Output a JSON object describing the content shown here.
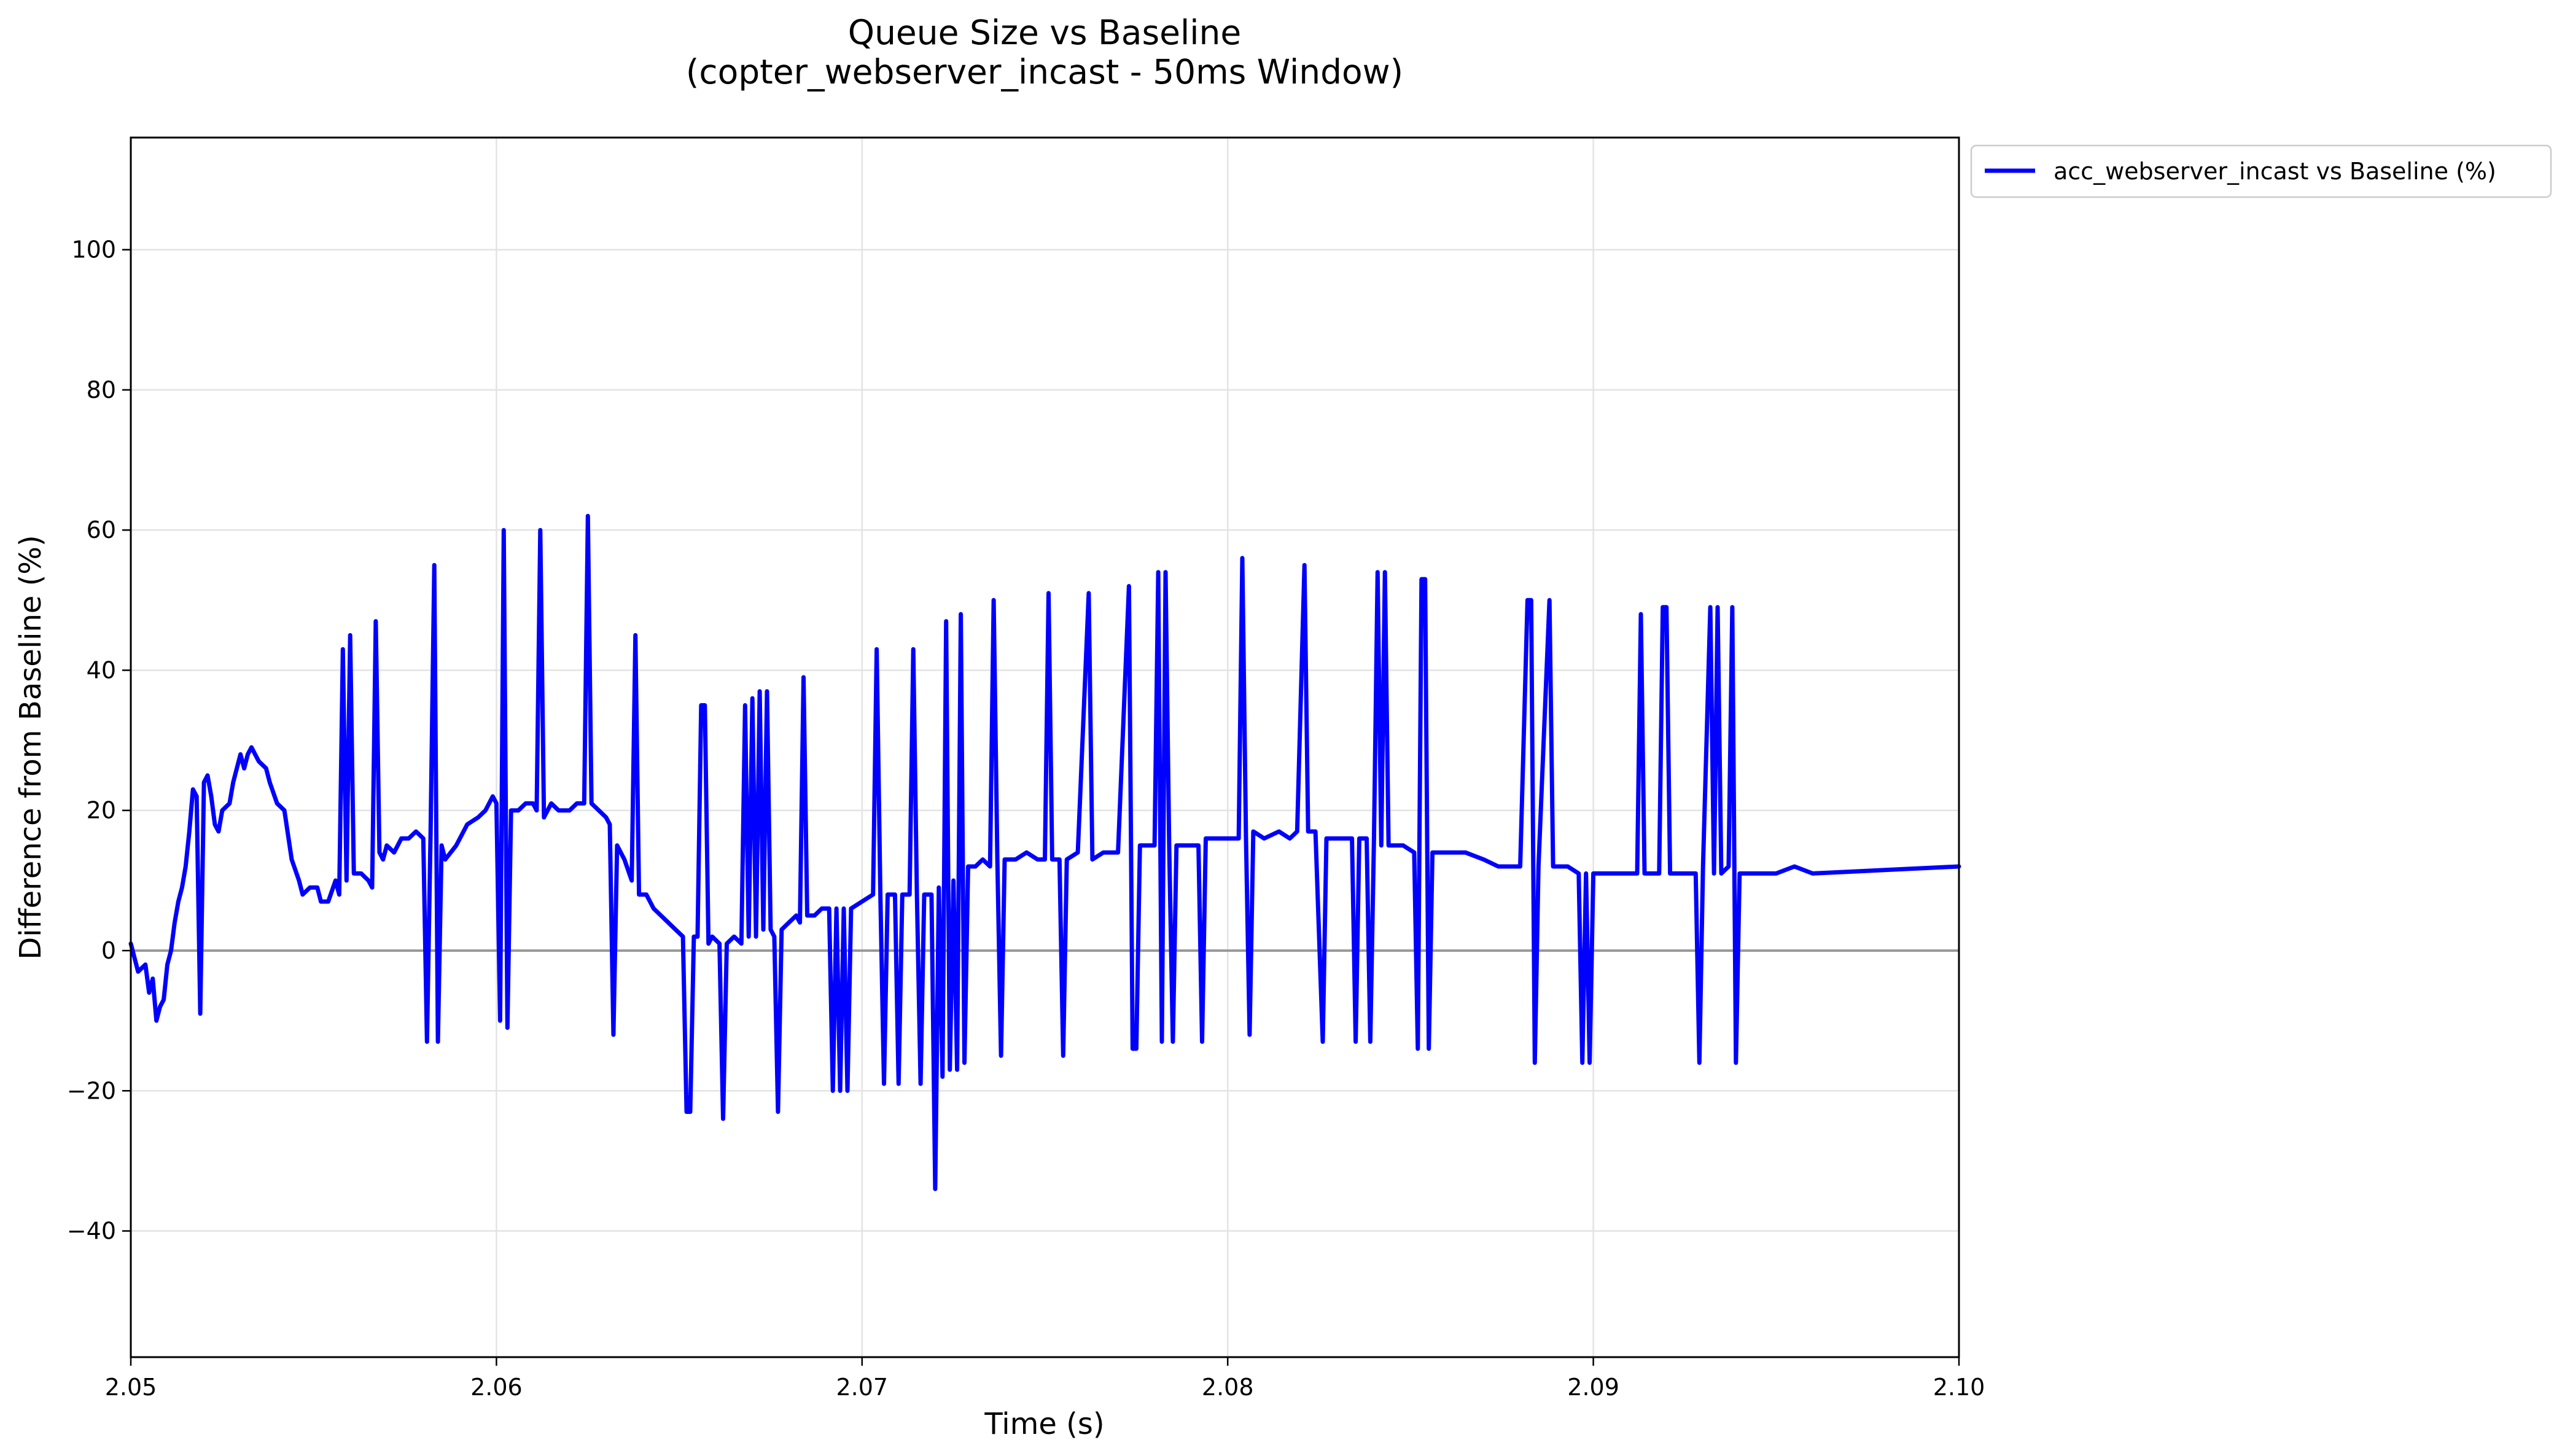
{
  "chart_data": {
    "type": "line",
    "title": "Queue Size vs Baseline",
    "subtitle": "(copter_webserver_incast - 50ms Window)",
    "xlabel": "Time (s)",
    "ylabel": "Difference from Baseline (%)",
    "xlim": [
      2.05,
      2.1
    ],
    "ylim": [
      -58,
      116
    ],
    "x_ticks": [
      2.05,
      2.06,
      2.07,
      2.08,
      2.09,
      2.1
    ],
    "x_tick_labels": [
      "2.05",
      "2.06",
      "2.07",
      "2.08",
      "2.09",
      "2.10"
    ],
    "y_ticks": [
      -40,
      -20,
      0,
      20,
      40,
      60,
      80,
      100
    ],
    "y_tick_labels": [
      "−40",
      "−20",
      "0",
      "20",
      "40",
      "60",
      "80",
      "100"
    ],
    "grid": true,
    "legend_position": "outside top-right",
    "reference_line": {
      "y": 0,
      "color": "#999999"
    },
    "series": [
      {
        "name": "acc_webserver_incast vs Baseline (%)",
        "color": "#0000ff",
        "points": [
          [
            2.05,
            1
          ],
          [
            2.0502,
            -3
          ],
          [
            2.0504,
            -2
          ],
          [
            2.0505,
            -6
          ],
          [
            2.0506,
            -4
          ],
          [
            2.0507,
            -10
          ],
          [
            2.0508,
            -8
          ],
          [
            2.0509,
            -7
          ],
          [
            2.051,
            -2
          ],
          [
            2.0511,
            0
          ],
          [
            2.0512,
            4
          ],
          [
            2.0513,
            7
          ],
          [
            2.0514,
            9
          ],
          [
            2.0515,
            12
          ],
          [
            2.0516,
            17
          ],
          [
            2.0517,
            23
          ],
          [
            2.0518,
            22
          ],
          [
            2.0519,
            -9
          ],
          [
            2.052,
            24
          ],
          [
            2.0521,
            25
          ],
          [
            2.0522,
            22
          ],
          [
            2.0523,
            18
          ],
          [
            2.0524,
            17
          ],
          [
            2.0525,
            20
          ],
          [
            2.0527,
            21
          ],
          [
            2.0528,
            24
          ],
          [
            2.053,
            28
          ],
          [
            2.0531,
            26
          ],
          [
            2.0532,
            28
          ],
          [
            2.0533,
            29
          ],
          [
            2.0535,
            27
          ],
          [
            2.0537,
            26
          ],
          [
            2.0538,
            24
          ],
          [
            2.054,
            21
          ],
          [
            2.0542,
            20
          ],
          [
            2.0544,
            13
          ],
          [
            2.0546,
            10
          ],
          [
            2.0547,
            8
          ],
          [
            2.0549,
            9
          ],
          [
            2.0551,
            9
          ],
          [
            2.0552,
            7
          ],
          [
            2.0554,
            7
          ],
          [
            2.0556,
            10
          ],
          [
            2.0557,
            8
          ],
          [
            2.0558,
            43
          ],
          [
            2.0559,
            10
          ],
          [
            2.056,
            45
          ],
          [
            2.0561,
            11
          ],
          [
            2.0563,
            11
          ],
          [
            2.0565,
            10
          ],
          [
            2.0566,
            9
          ],
          [
            2.0567,
            47
          ],
          [
            2.0568,
            14
          ],
          [
            2.0569,
            13
          ],
          [
            2.057,
            15
          ],
          [
            2.0572,
            14
          ],
          [
            2.0574,
            16
          ],
          [
            2.0576,
            16
          ],
          [
            2.0578,
            17
          ],
          [
            2.058,
            16
          ],
          [
            2.0581,
            -13
          ],
          [
            2.0582,
            17
          ],
          [
            2.0583,
            55
          ],
          [
            2.0584,
            -13
          ],
          [
            2.0585,
            15
          ],
          [
            2.0586,
            13
          ],
          [
            2.0589,
            15
          ],
          [
            2.0592,
            18
          ],
          [
            2.0595,
            19
          ],
          [
            2.0597,
            20
          ],
          [
            2.0599,
            22
          ],
          [
            2.06,
            21
          ],
          [
            2.0601,
            -10
          ],
          [
            2.0602,
            60
          ],
          [
            2.0603,
            -11
          ],
          [
            2.0604,
            20
          ],
          [
            2.0606,
            20
          ],
          [
            2.0608,
            21
          ],
          [
            2.061,
            21
          ],
          [
            2.0611,
            20
          ],
          [
            2.0612,
            60
          ],
          [
            2.0613,
            19
          ],
          [
            2.0615,
            21
          ],
          [
            2.0617,
            20
          ],
          [
            2.062,
            20
          ],
          [
            2.0622,
            21
          ],
          [
            2.0624,
            21
          ],
          [
            2.0625,
            62
          ],
          [
            2.0626,
            21
          ],
          [
            2.0628,
            20
          ],
          [
            2.063,
            19
          ],
          [
            2.0631,
            18
          ],
          [
            2.0632,
            -12
          ],
          [
            2.0633,
            15
          ],
          [
            2.0635,
            13
          ],
          [
            2.0637,
            10
          ],
          [
            2.0638,
            45
          ],
          [
            2.0639,
            8
          ],
          [
            2.0641,
            8
          ],
          [
            2.0643,
            6
          ],
          [
            2.0645,
            5
          ],
          [
            2.0647,
            4
          ],
          [
            2.0649,
            3
          ],
          [
            2.0651,
            2
          ],
          [
            2.0652,
            -23
          ],
          [
            2.0653,
            -23
          ],
          [
            2.0654,
            2
          ],
          [
            2.0655,
            2
          ],
          [
            2.0656,
            35
          ],
          [
            2.0657,
            35
          ],
          [
            2.0658,
            1
          ],
          [
            2.0659,
            2
          ],
          [
            2.0661,
            1
          ],
          [
            2.0662,
            -24
          ],
          [
            2.0663,
            1
          ],
          [
            2.0665,
            2
          ],
          [
            2.0667,
            1
          ],
          [
            2.0668,
            35
          ],
          [
            2.0669,
            2
          ],
          [
            2.067,
            36
          ],
          [
            2.0671,
            2
          ],
          [
            2.0672,
            37
          ],
          [
            2.0673,
            3
          ],
          [
            2.0674,
            37
          ],
          [
            2.0675,
            3
          ],
          [
            2.0676,
            2
          ],
          [
            2.0677,
            -23
          ],
          [
            2.0678,
            3
          ],
          [
            2.068,
            4
          ],
          [
            2.0682,
            5
          ],
          [
            2.0683,
            4
          ],
          [
            2.0684,
            39
          ],
          [
            2.0685,
            5
          ],
          [
            2.0687,
            5
          ],
          [
            2.0689,
            6
          ],
          [
            2.0691,
            6
          ],
          [
            2.0692,
            -20
          ],
          [
            2.0693,
            6
          ],
          [
            2.0694,
            -20
          ],
          [
            2.0695,
            6
          ],
          [
            2.0696,
            -20
          ],
          [
            2.0697,
            6
          ],
          [
            2.07,
            7
          ],
          [
            2.0703,
            8
          ],
          [
            2.0704,
            43
          ],
          [
            2.0705,
            8
          ],
          [
            2.0706,
            -19
          ],
          [
            2.0707,
            8
          ],
          [
            2.0709,
            8
          ],
          [
            2.071,
            -19
          ],
          [
            2.0711,
            8
          ],
          [
            2.0713,
            8
          ],
          [
            2.0714,
            43
          ],
          [
            2.0715,
            8
          ],
          [
            2.0716,
            -19
          ],
          [
            2.0717,
            8
          ],
          [
            2.0719,
            8
          ],
          [
            2.072,
            -34
          ],
          [
            2.0721,
            9
          ],
          [
            2.0722,
            -18
          ],
          [
            2.0723,
            47
          ],
          [
            2.0724,
            -17
          ],
          [
            2.0725,
            10
          ],
          [
            2.0726,
            -17
          ],
          [
            2.0727,
            48
          ],
          [
            2.0728,
            -16
          ],
          [
            2.0729,
            12
          ],
          [
            2.0731,
            12
          ],
          [
            2.0733,
            13
          ],
          [
            2.0735,
            12
          ],
          [
            2.0736,
            50
          ],
          [
            2.0737,
            13
          ],
          [
            2.0738,
            -15
          ],
          [
            2.0739,
            13
          ],
          [
            2.0742,
            13
          ],
          [
            2.0745,
            14
          ],
          [
            2.0748,
            13
          ],
          [
            2.075,
            13
          ],
          [
            2.0751,
            51
          ],
          [
            2.0752,
            13
          ],
          [
            2.0754,
            13
          ],
          [
            2.0755,
            -15
          ],
          [
            2.0756,
            13
          ],
          [
            2.0759,
            14
          ],
          [
            2.0762,
            51
          ],
          [
            2.0763,
            13
          ],
          [
            2.0766,
            14
          ],
          [
            2.077,
            14
          ],
          [
            2.0773,
            52
          ],
          [
            2.0774,
            -14
          ],
          [
            2.0775,
            -14
          ],
          [
            2.0776,
            15
          ],
          [
            2.0778,
            15
          ],
          [
            2.078,
            15
          ],
          [
            2.0781,
            54
          ],
          [
            2.0782,
            -13
          ],
          [
            2.0783,
            54
          ],
          [
            2.0784,
            15
          ],
          [
            2.0785,
            -13
          ],
          [
            2.0786,
            15
          ],
          [
            2.079,
            15
          ],
          [
            2.0792,
            15
          ],
          [
            2.0793,
            -13
          ],
          [
            2.0794,
            16
          ],
          [
            2.0797,
            16
          ],
          [
            2.08,
            16
          ],
          [
            2.0803,
            16
          ],
          [
            2.0804,
            56
          ],
          [
            2.0805,
            16
          ],
          [
            2.0806,
            -12
          ],
          [
            2.0807,
            17
          ],
          [
            2.081,
            16
          ],
          [
            2.0814,
            17
          ],
          [
            2.0817,
            16
          ],
          [
            2.0819,
            17
          ],
          [
            2.0821,
            55
          ],
          [
            2.0822,
            17
          ],
          [
            2.0824,
            17
          ],
          [
            2.0826,
            -13
          ],
          [
            2.0827,
            16
          ],
          [
            2.0832,
            16
          ],
          [
            2.0834,
            16
          ],
          [
            2.0835,
            -13
          ],
          [
            2.0836,
            16
          ],
          [
            2.0838,
            16
          ],
          [
            2.0839,
            -13
          ],
          [
            2.084,
            16
          ],
          [
            2.0841,
            54
          ],
          [
            2.0842,
            15
          ],
          [
            2.0843,
            54
          ],
          [
            2.0844,
            15
          ],
          [
            2.0848,
            15
          ],
          [
            2.0851,
            14
          ],
          [
            2.0852,
            -14
          ],
          [
            2.0853,
            53
          ],
          [
            2.0854,
            53
          ],
          [
            2.0855,
            -14
          ],
          [
            2.0856,
            14
          ],
          [
            2.086,
            14
          ],
          [
            2.0865,
            14
          ],
          [
            2.087,
            13
          ],
          [
            2.0874,
            12
          ],
          [
            2.088,
            12
          ],
          [
            2.0882,
            50
          ],
          [
            2.0883,
            50
          ],
          [
            2.0884,
            -16
          ],
          [
            2.0885,
            12
          ],
          [
            2.0888,
            50
          ],
          [
            2.0889,
            12
          ],
          [
            2.0893,
            12
          ],
          [
            2.0896,
            11
          ],
          [
            2.0897,
            -16
          ],
          [
            2.0898,
            11
          ],
          [
            2.0899,
            -16
          ],
          [
            2.09,
            11
          ],
          [
            2.0905,
            11
          ],
          [
            2.091,
            11
          ],
          [
            2.0912,
            11
          ],
          [
            2.0913,
            48
          ],
          [
            2.0914,
            11
          ],
          [
            2.0916,
            11
          ],
          [
            2.0918,
            11
          ],
          [
            2.0919,
            49
          ],
          [
            2.092,
            49
          ],
          [
            2.0921,
            11
          ],
          [
            2.0925,
            11
          ],
          [
            2.0928,
            11
          ],
          [
            2.0929,
            -16
          ],
          [
            2.093,
            12
          ],
          [
            2.0932,
            49
          ],
          [
            2.0933,
            11
          ],
          [
            2.0934,
            49
          ],
          [
            2.0935,
            11
          ],
          [
            2.0937,
            12
          ],
          [
            2.0938,
            49
          ],
          [
            2.0939,
            -16
          ],
          [
            2.094,
            11
          ],
          [
            2.0945,
            11
          ],
          [
            2.095,
            11
          ],
          [
            2.0955,
            12
          ],
          [
            2.096,
            11
          ],
          [
            2.1,
            12
          ]
        ]
      }
    ]
  }
}
